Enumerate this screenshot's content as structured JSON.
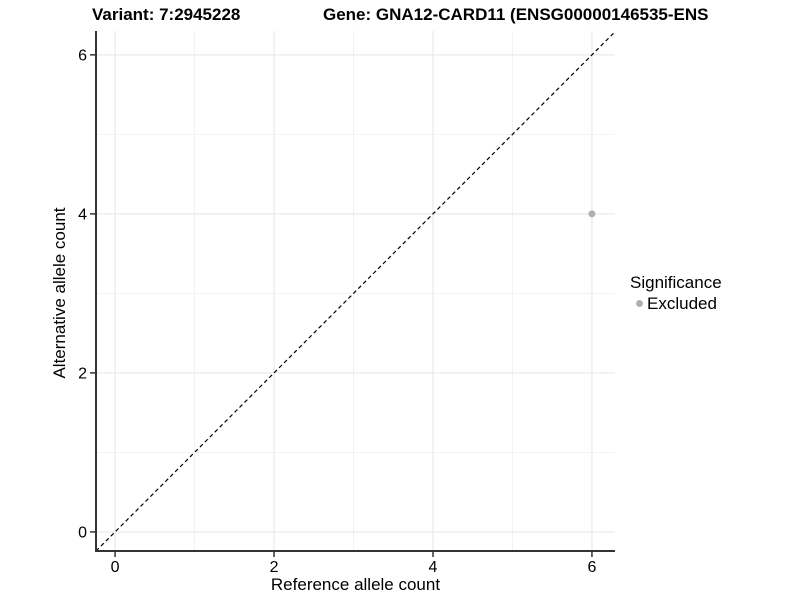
{
  "chart_data": {
    "type": "scatter",
    "title_left": "Variant: 7:2945228",
    "title_right": "Gene: GNA12-CARD11 (ENSG00000146535-ENS",
    "xlabel": "Reference allele count",
    "ylabel": "Alternative allele count",
    "xlim": [
      -0.24,
      6.29
    ],
    "ylim": [
      -0.24,
      6.3
    ],
    "x_ticks": [
      0,
      2,
      4,
      6
    ],
    "y_ticks": [
      0,
      2,
      4,
      6
    ],
    "x_minor_ticks": [
      1,
      3,
      5
    ],
    "y_minor_ticks": [
      1,
      3,
      5
    ],
    "grid": {
      "major_color": "#e5e5e5",
      "minor_color": "#f2f2f2"
    },
    "axis_line_color": "#333333",
    "tick_color": "#333333",
    "identity_line": {
      "style": "dashed",
      "color": "#000000",
      "equation": "y = x"
    },
    "series": [
      {
        "name": "Excluded",
        "color": "#b0b0b0",
        "points": [
          [
            6,
            4
          ]
        ]
      }
    ],
    "legend": {
      "title": "Significance",
      "position": "right",
      "items": [
        {
          "label": "Excluded",
          "color": "#b0b0b0"
        }
      ]
    }
  }
}
